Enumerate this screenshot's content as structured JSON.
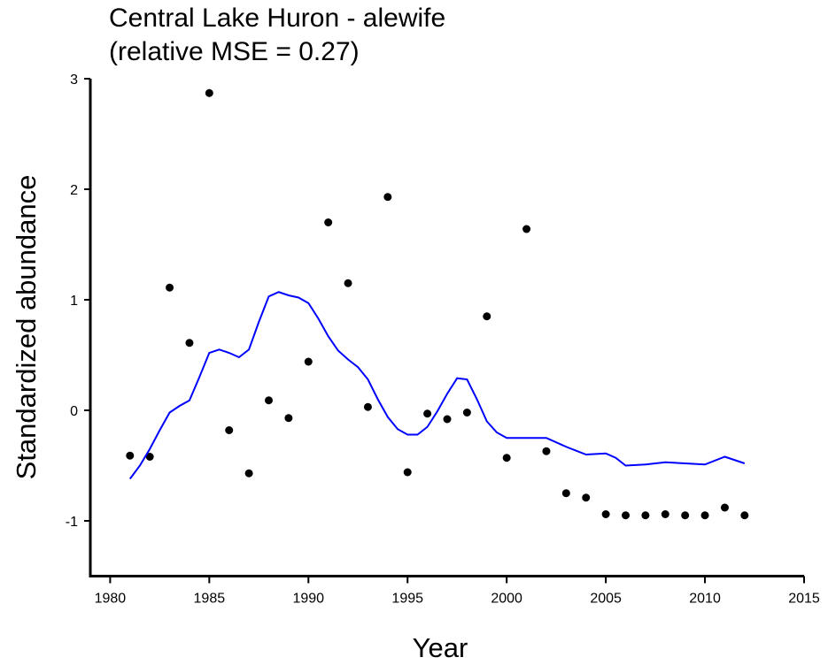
{
  "chart_data": {
    "type": "scatter",
    "title": [
      "Central Lake Huron - alewife",
      "(relative MSE = 0.27)"
    ],
    "x_label": "Year",
    "y_label": "Standardized abundance",
    "xlim": [
      1979,
      2015
    ],
    "xticks": [
      1980,
      1985,
      1990,
      1995,
      2000,
      2005,
      2010,
      2015
    ],
    "ylim": [
      -1.5,
      3
    ],
    "yticks": [
      -1,
      0,
      1,
      2,
      3
    ],
    "grid": false,
    "series": [
      {
        "type": "scatter",
        "color": "#000000",
        "x": [
          1981,
          1982,
          1983,
          1984,
          1985,
          1986,
          1987,
          1988,
          1989,
          1990,
          1991,
          1992,
          1993,
          1994,
          1995,
          1996,
          1997,
          1998,
          1999,
          2000,
          2001,
          2002,
          2003,
          2004,
          2005,
          2006,
          2007,
          2008,
          2009,
          2010,
          2011,
          2012
        ],
        "values": [
          -0.41,
          -0.42,
          1.11,
          0.61,
          2.87,
          -0.18,
          -0.57,
          0.09,
          -0.07,
          0.44,
          1.7,
          1.15,
          0.03,
          1.93,
          -0.56,
          -0.03,
          -0.08,
          -0.02,
          0.85,
          -0.43,
          1.64,
          -0.37,
          -0.75,
          -0.79,
          -0.94,
          -0.95,
          -0.95,
          -0.94,
          -0.95,
          -0.95,
          -0.88,
          -0.95
        ]
      },
      {
        "type": "line",
        "color": "#0000ff",
        "x": [
          1981,
          1981.5,
          1982,
          1982.5,
          1983,
          1983.5,
          1984,
          1984.5,
          1985,
          1985.5,
          1986,
          1986.5,
          1987,
          1987.5,
          1988,
          1988.5,
          1989,
          1989.5,
          1990,
          1990.5,
          1991,
          1991.5,
          1992,
          1992.5,
          1993,
          1993.5,
          1994,
          1994.5,
          1995,
          1995.5,
          1996,
          1996.5,
          1997,
          1997.5,
          1998,
          1998.5,
          1999,
          1999.5,
          2000,
          2001,
          2002,
          2003,
          2004,
          2005,
          2005.5,
          2006,
          2007,
          2008,
          2009,
          2010,
          2011,
          2012
        ],
        "values": [
          -0.62,
          -0.5,
          -0.35,
          -0.18,
          -0.02,
          0.04,
          0.09,
          0.3,
          0.52,
          0.55,
          0.52,
          0.48,
          0.55,
          0.8,
          1.03,
          1.07,
          1.04,
          1.02,
          0.97,
          0.83,
          0.67,
          0.54,
          0.46,
          0.39,
          0.28,
          0.1,
          -0.06,
          -0.17,
          -0.22,
          -0.22,
          -0.15,
          -0.01,
          0.15,
          0.29,
          0.28,
          0.1,
          -0.1,
          -0.2,
          -0.25,
          -0.25,
          -0.25,
          -0.33,
          -0.4,
          -0.39,
          -0.43,
          -0.5,
          -0.49,
          -0.47,
          -0.48,
          -0.49,
          -0.42,
          -0.48
        ]
      }
    ]
  }
}
